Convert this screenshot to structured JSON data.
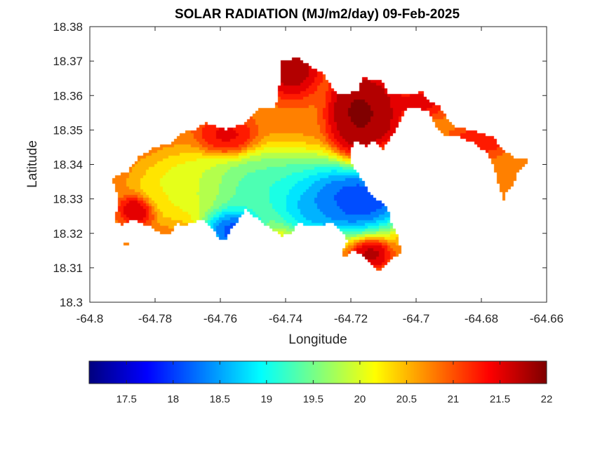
{
  "chart_data": {
    "type": "heatmap",
    "title": "SOLAR RADIATION (MJ/m2/day) 09-Feb-2025",
    "xlabel": "Longitude",
    "ylabel": "Latitude",
    "xlim": [
      -64.8,
      -64.66
    ],
    "ylim": [
      18.3,
      18.38
    ],
    "x_ticks": [
      -64.8,
      -64.78,
      -64.76,
      -64.74,
      -64.72,
      -64.7,
      -64.68,
      -64.66
    ],
    "x_tick_labels": [
      "-64.8",
      "-64.78",
      "-64.76",
      "-64.74",
      "-64.72",
      "-64.7",
      "-64.68",
      "-64.66"
    ],
    "y_ticks": [
      18.3,
      18.31,
      18.32,
      18.33,
      18.34,
      18.35,
      18.36,
      18.37,
      18.38
    ],
    "y_tick_labels": [
      "18.3",
      "18.31",
      "18.32",
      "18.33",
      "18.34",
      "18.35",
      "18.36",
      "18.37",
      "18.38"
    ],
    "grid": false,
    "colormap": "jet",
    "colorbar": {
      "placement": "bottom",
      "range": [
        17.1,
        22.0
      ],
      "ticks": [
        17.5,
        18,
        18.5,
        19,
        19.5,
        20,
        20.5,
        21,
        21.5,
        22
      ],
      "tick_labels": [
        "17.5",
        "18",
        "18.5",
        "19",
        "19.5",
        "20",
        "20.5",
        "21",
        "21.5",
        "22"
      ]
    },
    "land_mask": [
      [
        -64.7925,
        18.3236
      ],
      [
        -64.791,
        18.329
      ],
      [
        -64.793,
        18.336
      ],
      [
        -64.788,
        18.338
      ],
      [
        -64.785,
        18.342
      ],
      [
        -64.78,
        18.345
      ],
      [
        -64.775,
        18.346
      ],
      [
        -64.772,
        18.349
      ],
      [
        -64.768,
        18.35
      ],
      [
        -64.764,
        18.352
      ],
      [
        -64.758,
        18.35
      ],
      [
        -64.752,
        18.352
      ],
      [
        -64.748,
        18.356
      ],
      [
        -64.743,
        18.356
      ],
      [
        -64.742,
        18.361
      ],
      [
        -64.741,
        18.37
      ],
      [
        -64.736,
        18.371
      ],
      [
        -64.732,
        18.368
      ],
      [
        -64.728,
        18.366
      ],
      [
        -64.724,
        18.36
      ],
      [
        -64.718,
        18.361
      ],
      [
        -64.716,
        18.365
      ],
      [
        -64.71,
        18.364
      ],
      [
        -64.708,
        18.36
      ],
      [
        -64.702,
        18.36
      ],
      [
        -64.698,
        18.361
      ],
      [
        -64.696,
        18.358
      ],
      [
        -64.693,
        18.357
      ],
      [
        -64.69,
        18.353
      ],
      [
        -64.688,
        18.351
      ],
      [
        -64.684,
        18.35
      ],
      [
        -64.68,
        18.349
      ],
      [
        -64.676,
        18.348
      ],
      [
        -64.674,
        18.345
      ],
      [
        -64.67,
        18.342
      ],
      [
        -64.665,
        18.342
      ],
      [
        -64.666,
        18.34
      ],
      [
        -64.669,
        18.337
      ],
      [
        -64.67,
        18.334
      ],
      [
        -64.672,
        18.332
      ],
      [
        -64.673,
        18.329
      ],
      [
        -64.674,
        18.332
      ],
      [
        -64.676,
        18.339
      ],
      [
        -64.678,
        18.343
      ],
      [
        -64.682,
        18.346
      ],
      [
        -64.687,
        18.348
      ],
      [
        -64.691,
        18.348
      ],
      [
        -64.694,
        18.351
      ],
      [
        -64.696,
        18.355
      ],
      [
        -64.699,
        18.356
      ],
      [
        -64.703,
        18.356
      ],
      [
        -64.706,
        18.35
      ],
      [
        -64.708,
        18.347
      ],
      [
        -64.71,
        18.344
      ],
      [
        -64.712,
        18.346
      ],
      [
        -64.713,
        18.347
      ],
      [
        -64.715,
        18.345
      ],
      [
        -64.719,
        18.347
      ],
      [
        -64.72,
        18.342
      ],
      [
        -64.719,
        18.339
      ],
      [
        -64.716,
        18.335
      ],
      [
        -64.714,
        18.331
      ],
      [
        -64.709,
        18.328
      ],
      [
        -64.707,
        18.322
      ],
      [
        -64.706,
        18.321
      ],
      [
        -64.705,
        18.317
      ],
      [
        -64.704,
        18.314
      ],
      [
        -64.708,
        18.312
      ],
      [
        -64.711,
        18.309
      ],
      [
        -64.713,
        18.31
      ],
      [
        -64.716,
        18.313
      ],
      [
        -64.719,
        18.315
      ],
      [
        -64.721,
        18.313
      ],
      [
        -64.723,
        18.313
      ],
      [
        -64.721,
        18.318
      ],
      [
        -64.722,
        18.32
      ],
      [
        -64.726,
        18.323
      ],
      [
        -64.729,
        18.322
      ],
      [
        -64.733,
        18.322
      ],
      [
        -64.736,
        18.323
      ],
      [
        -64.738,
        18.32
      ],
      [
        -64.741,
        18.319
      ],
      [
        -64.744,
        18.321
      ],
      [
        -64.747,
        18.323
      ],
      [
        -64.75,
        18.325
      ],
      [
        -64.752,
        18.327
      ],
      [
        -64.754,
        18.324
      ],
      [
        -64.756,
        18.322
      ],
      [
        -64.758,
        18.318
      ],
      [
        -64.76,
        18.318
      ],
      [
        -64.762,
        18.321
      ],
      [
        -64.765,
        18.324
      ],
      [
        -64.768,
        18.323
      ],
      [
        -64.771,
        18.322
      ],
      [
        -64.773,
        18.323
      ],
      [
        -64.775,
        18.32
      ],
      [
        -64.778,
        18.32
      ],
      [
        -64.782,
        18.322
      ],
      [
        -64.787,
        18.324
      ],
      [
        -64.79,
        18.322
      ]
    ],
    "islet_mask": [
      [
        -64.788,
        18.317
      ],
      [
        -64.788,
        18.316
      ],
      [
        -64.79,
        18.316
      ],
      [
        -64.79,
        18.317
      ]
    ],
    "field_base": 20.8,
    "field_features": [
      [
        -64.721,
        18.33,
        17.2,
        0.015,
        0.007
      ],
      [
        -64.756,
        18.321,
        17.5,
        0.0065,
        0.005
      ],
      [
        -64.73,
        18.327,
        18.5,
        0.008,
        0.005
      ],
      [
        -64.744,
        18.333,
        19.0,
        0.02,
        0.008
      ],
      [
        -64.77,
        18.334,
        20.0,
        0.01,
        0.006
      ],
      [
        -64.778,
        18.33,
        20.2,
        0.005,
        0.004
      ],
      [
        -64.785,
        18.327,
        21.9,
        0.004,
        0.003
      ],
      [
        -64.738,
        18.368,
        22.0,
        0.006,
        0.006
      ],
      [
        -64.719,
        18.357,
        22.0,
        0.005,
        0.007
      ],
      [
        -64.713,
        18.355,
        22.0,
        0.006,
        0.008
      ],
      [
        -64.718,
        18.352,
        22.0,
        0.006,
        0.008
      ],
      [
        -64.758,
        18.348,
        21.6,
        0.006,
        0.004
      ],
      [
        -64.714,
        18.314,
        21.9,
        0.004,
        0.003
      ],
      [
        -64.699,
        18.358,
        21.6,
        0.006,
        0.003
      ],
      [
        -64.68,
        18.347,
        21.4,
        0.006,
        0.003
      ],
      [
        -64.669,
        18.337,
        20.7,
        0.003,
        0.006
      ],
      [
        -64.71,
        18.343,
        21.0,
        0.003,
        0.003
      ]
    ]
  }
}
